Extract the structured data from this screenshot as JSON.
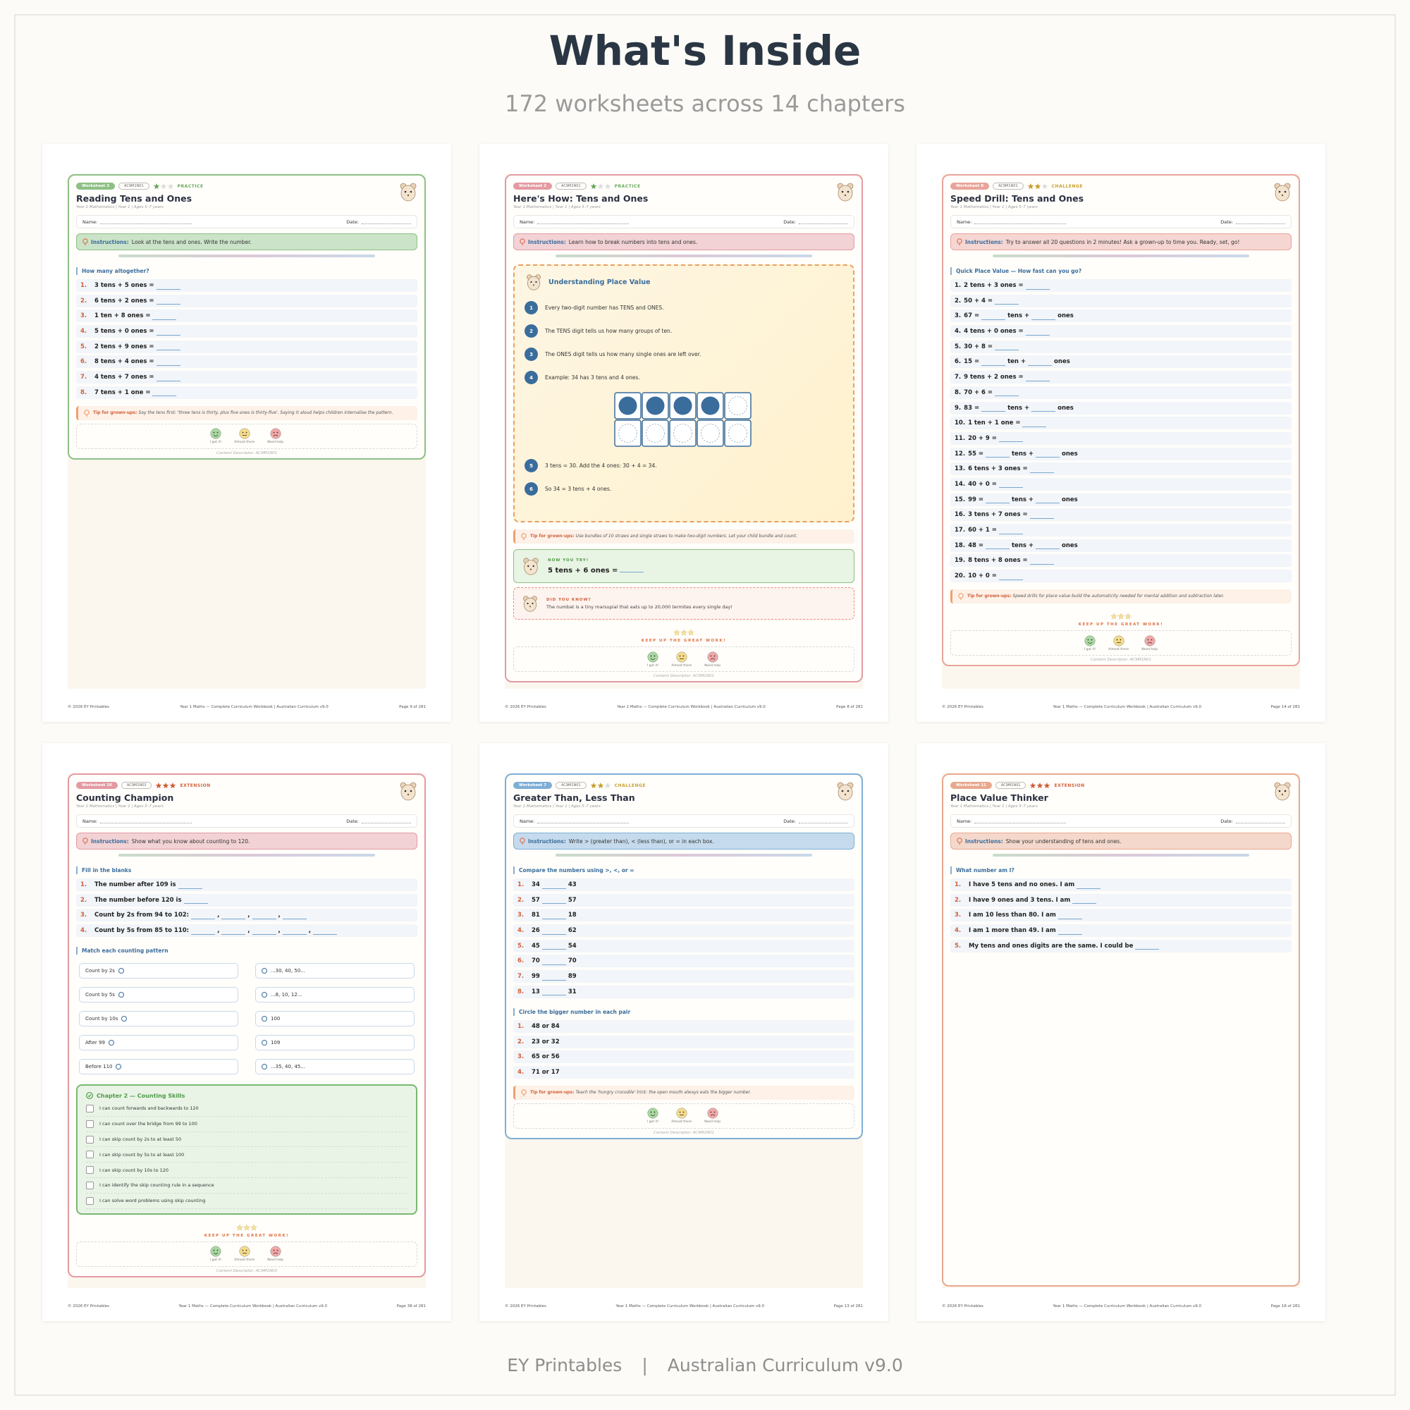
{
  "header": {
    "title": "What's Inside",
    "subtitle": "172 worksheets across 14 chapters"
  },
  "footer": {
    "brand": "EY Printables",
    "separator": "|",
    "curriculum": "Australian Curriculum v9.0"
  },
  "common": {
    "subtitle": "Year 1 Mathematics | Year 1 | Ages 5–7 years",
    "name_label": "Name:",
    "date_label": "Date:",
    "instructions_label": "Instructions:",
    "tip_label": "Tip for grown-ups:",
    "feedback": [
      "I got it!",
      "Almost there",
      "Need help"
    ],
    "keep_up": "KEEP UP THE GREAT WORK!",
    "footer_left": "© 2026 EY Printables",
    "footer_center": "Year 1 Maths — Complete Curriculum Workbook | Australian Curriculum v9.0"
  },
  "worksheets": [
    {
      "badge": "Worksheet 3",
      "code": "AC9M1N01",
      "stars": 1,
      "level": "PRACTICE",
      "color": "#8cc084",
      "stars_color": "#6aaa5e",
      "title": "Reading Tens and Ones",
      "instructions": "Look at the tens and ones. Write the number.",
      "sections": [
        {
          "heading": "How many altogether?",
          "items": [
            {
              "n": "1.",
              "t": [
                "3 tens + 5 ones =",
                null
              ]
            },
            {
              "n": "2.",
              "t": [
                "6 tens + 2 ones =",
                null
              ]
            },
            {
              "n": "3.",
              "t": [
                "1 ten + 8 ones =",
                null
              ]
            },
            {
              "n": "4.",
              "t": [
                "5 tens + 0 ones =",
                null
              ]
            },
            {
              "n": "5.",
              "t": [
                "2 tens + 9 ones =",
                null
              ]
            },
            {
              "n": "6.",
              "t": [
                "8 tens + 4 ones =",
                null
              ]
            },
            {
              "n": "7.",
              "t": [
                "4 tens + 7 ones =",
                null
              ]
            },
            {
              "n": "8.",
              "t": [
                "7 tens + 1 one =",
                null
              ]
            }
          ]
        }
      ],
      "tip": "Say the tens first: 'three tens is thirty, plus five ones is thirty-five'. Saying it aloud helps children internalise the pattern.",
      "keep_up": false,
      "feedback": true,
      "descriptor": "Content Descriptor: AC9M1N01",
      "page": "Page 9 of 281"
    },
    {
      "badge": "Worksheet 2",
      "code": "AC9M1N01",
      "stars": 1,
      "level": "PRACTICE",
      "color": "#e39aa2",
      "stars_color": "#6aaa5e",
      "title": "Here's How: Tens and Ones",
      "instructions": "Learn how to break numbers into tens and ones.",
      "lesson": {
        "heading": "Understanding Place Value",
        "steps_before": [
          [
            "1",
            "Every two-digit number has TENS and ONES."
          ],
          [
            "2",
            "The TENS digit tells us how many groups of ten."
          ],
          [
            "3",
            "The ONES digit tells us how many single ones are left over."
          ],
          [
            "4",
            "Example: 34 has 3 tens and 4 ones."
          ]
        ],
        "ten_frame": {
          "filled": 4,
          "cells": 10
        },
        "steps_after": [
          [
            "5",
            "3 tens = 30. Add the 4 ones: 30 + 4 = 34."
          ],
          [
            "6",
            "So 34 = 3 tens + 4 ones."
          ]
        ]
      },
      "tip": "Use bundles of 10 straws and single straws to make two-digit numbers. Let your child bundle and count.",
      "try": {
        "label": "NOW YOU TRY!",
        "problem": "5 tens + 6 ones ="
      },
      "fact": {
        "label": "DID YOU KNOW?",
        "text": "The numbat is a tiny marsupial that eats up to 20,000 termites every single day!"
      },
      "keep_up": true,
      "feedback": true,
      "descriptor": "Content Descriptor: AC9M1N01",
      "page": "Page 8 of 281"
    },
    {
      "badge": "Worksheet 8",
      "code": "AC9M1N01",
      "stars": 2,
      "level": "CHALLENGE",
      "color": "#e8a49a",
      "stars_color": "#c9a030",
      "title": "Speed Drill: Tens and Ones",
      "instructions": "Try to answer all 20 questions in 2 minutes! Ask a grown-up to time you. Ready, set, go!",
      "sections": [
        {
          "heading": "Quick Place Value — How fast can you go?",
          "items": [
            {
              "n": "1.",
              "t": [
                "2 tens + 3 ones =",
                null
              ]
            },
            {
              "n": "2.",
              "t": [
                "50 + 4 =",
                null
              ]
            },
            {
              "n": "3.",
              "t": [
                "67 =",
                null,
                "tens +",
                null,
                "ones"
              ]
            },
            {
              "n": "4.",
              "t": [
                "4 tens + 0 ones =",
                null
              ]
            },
            {
              "n": "5.",
              "t": [
                "30 + 8 =",
                null
              ]
            },
            {
              "n": "6.",
              "t": [
                "15 =",
                null,
                "ten +",
                null,
                "ones"
              ]
            },
            {
              "n": "7.",
              "t": [
                "9 tens + 2 ones =",
                null
              ]
            },
            {
              "n": "8.",
              "t": [
                "70 + 6 =",
                null
              ]
            },
            {
              "n": "9.",
              "t": [
                "83 =",
                null,
                "tens +",
                null,
                "ones"
              ]
            },
            {
              "n": "10.",
              "t": [
                "1 ten + 1 one =",
                null
              ]
            },
            {
              "n": "11.",
              "t": [
                "20 + 9 =",
                null
              ]
            },
            {
              "n": "12.",
              "t": [
                "55 =",
                null,
                "tens +",
                null,
                "ones"
              ]
            },
            {
              "n": "13.",
              "t": [
                "6 tens + 3 ones =",
                null
              ]
            },
            {
              "n": "14.",
              "t": [
                "40 + 0 =",
                null
              ]
            },
            {
              "n": "15.",
              "t": [
                "99 =",
                null,
                "tens +",
                null,
                "ones"
              ]
            },
            {
              "n": "16.",
              "t": [
                "3 tens + 7 ones =",
                null
              ]
            },
            {
              "n": "17.",
              "t": [
                "60 + 1 =",
                null
              ]
            },
            {
              "n": "18.",
              "t": [
                "48 =",
                null,
                "tens +",
                null,
                "ones"
              ]
            },
            {
              "n": "19.",
              "t": [
                "8 tens + 8 ones =",
                null
              ]
            },
            {
              "n": "20.",
              "t": [
                "10 + 0 =",
                null
              ]
            }
          ]
        }
      ],
      "tip": "Speed drills for place value build the automaticity needed for mental addition and subtraction later.",
      "keep_up": true,
      "feedback": true,
      "descriptor": "Content Descriptor: AC9M1N01",
      "page": "Page 14 of 281"
    },
    {
      "badge": "Worksheet 26",
      "code": "AC9M1N03",
      "stars": 3,
      "level": "EXTENSION",
      "color": "#e39aa2",
      "stars_color": "#d0603a",
      "title": "Counting Champion",
      "instructions": "Show what you know about counting to 120.",
      "sections": [
        {
          "heading": "Fill in the blanks",
          "items": [
            {
              "n": "1.",
              "t": [
                "The number after 109 is",
                null
              ]
            },
            {
              "n": "2.",
              "t": [
                "The number before 120 is",
                null
              ]
            },
            {
              "n": "3.",
              "t": [
                "Count by 2s from 94 to 102:",
                null,
                ",",
                null,
                ",",
                null,
                ",",
                null
              ]
            },
            {
              "n": "4.",
              "t": [
                "Count by 5s from 85 to 110:",
                null,
                ",",
                null,
                ",",
                null,
                ",",
                null,
                ",",
                null
              ]
            }
          ]
        },
        {
          "heading": "Match each counting pattern",
          "match": {
            "left": [
              "Count by 2s",
              "Count by 5s",
              "Count by 10s",
              "After 99",
              "Before 110"
            ],
            "right": [
              "...30, 40, 50...",
              "...8, 10, 12...",
              "100",
              "109",
              "...35, 40, 45..."
            ]
          }
        },
        {
          "checklist": {
            "heading": "Chapter 2 — Counting Skills",
            "items": [
              "I can count forwards and backwards to 120",
              "I can count over the bridge from 99 to 100",
              "I can skip count by 2s to at least 50",
              "I can skip count by 5s to at least 100",
              "I can skip count by 10s to 120",
              "I can identify the skip counting rule in a sequence",
              "I can solve word problems using skip counting"
            ]
          }
        }
      ],
      "keep_up": true,
      "feedback": true,
      "descriptor": "Content Descriptor: AC9M1N03",
      "page": "Page 38 of 281"
    },
    {
      "badge": "Worksheet 7",
      "code": "AC9M1N01",
      "stars": 2,
      "level": "CHALLENGE",
      "color": "#7eaed6",
      "stars_color": "#c9a030",
      "title": "Greater Than, Less Than",
      "instructions": "Write > (greater than), < (less than), or = in each box.",
      "sections": [
        {
          "heading": "Compare the numbers using >, <, or =",
          "items": [
            {
              "n": "1.",
              "t": [
                "34",
                null,
                "43"
              ]
            },
            {
              "n": "2.",
              "t": [
                "57",
                null,
                "57"
              ]
            },
            {
              "n": "3.",
              "t": [
                "81",
                null,
                "18"
              ]
            },
            {
              "n": "4.",
              "t": [
                "26",
                null,
                "62"
              ]
            },
            {
              "n": "5.",
              "t": [
                "45",
                null,
                "54"
              ]
            },
            {
              "n": "6.",
              "t": [
                "70",
                null,
                "70"
              ]
            },
            {
              "n": "7.",
              "t": [
                "99",
                null,
                "89"
              ]
            },
            {
              "n": "8.",
              "t": [
                "13",
                null,
                "31"
              ]
            }
          ]
        },
        {
          "heading": "Circle the bigger number in each pair",
          "items": [
            {
              "n": "1.",
              "t": [
                "48 or 84"
              ]
            },
            {
              "n": "2.",
              "t": [
                "23 or 32"
              ]
            },
            {
              "n": "3.",
              "t": [
                "65 or 56"
              ]
            },
            {
              "n": "4.",
              "t": [
                "71 or 17"
              ]
            }
          ]
        }
      ],
      "tip": "Teach the 'hungry crocodile' trick: the open mouth always eats the bigger number.",
      "keep_up": false,
      "feedback": true,
      "descriptor": "Content Descriptor: AC9M1N01",
      "page": "Page 13 of 281"
    },
    {
      "badge": "Worksheet 11",
      "code": "AC9M1N01",
      "stars": 3,
      "level": "EXTENSION",
      "color": "#e8a88e",
      "stars_color": "#d0603a",
      "title": "Place Value Thinker",
      "instructions": "Show your understanding of tens and ones.",
      "sections": [
        {
          "heading": "What number am I?",
          "items": [
            {
              "n": "1.",
              "t": [
                "I have 5 tens and no ones. I am",
                null
              ]
            },
            {
              "n": "2.",
              "t": [
                "I have 9 ones and 3 tens. I am",
                null
              ]
            },
            {
              "n": "3.",
              "t": [
                "I am 10 less than 80. I am",
                null
              ]
            },
            {
              "n": "4.",
              "t": [
                "I am 1 more than 49. I am",
                null
              ]
            },
            {
              "n": "5.",
              "t": [
                "My tens and ones digits are the same. I could be",
                null
              ]
            }
          ]
        }
      ],
      "keep_up": false,
      "feedback": false,
      "page": "Page 18 of 281"
    }
  ]
}
